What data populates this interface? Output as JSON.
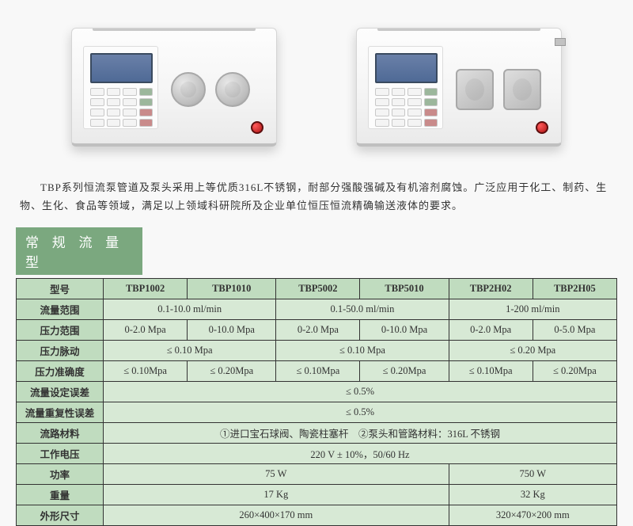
{
  "description": "TBP系列恒流泵管道及泵头采用上等优质316L不锈钢，耐部分强酸强碱及有机溶剂腐蚀。广泛应用于化工、制药、生物、生化、食品等领域，满足以上领域科研院所及企业单位恒压恒流精确输送液体的要求。",
  "section_title": "常 规 流 量 型",
  "images": {
    "left_alt": "TBP pump model A",
    "right_alt": "TBP pump model B"
  },
  "table": {
    "header_label": "型号",
    "models": [
      "TBP1002",
      "TBP1010",
      "TBP5002",
      "TBP5010",
      "TBP2H02",
      "TBP2H05"
    ],
    "rows": [
      {
        "label": "流量范围",
        "spans": [
          {
            "colspan": 2,
            "value": "0.1-10.0 ml/min"
          },
          {
            "colspan": 2,
            "value": "0.1-50.0 ml/min"
          },
          {
            "colspan": 2,
            "value": "1-200 ml/min"
          }
        ]
      },
      {
        "label": "压力范围",
        "spans": [
          {
            "colspan": 1,
            "value": "0-2.0 Mpa"
          },
          {
            "colspan": 1,
            "value": "0-10.0 Mpa"
          },
          {
            "colspan": 1,
            "value": "0-2.0 Mpa"
          },
          {
            "colspan": 1,
            "value": "0-10.0 Mpa"
          },
          {
            "colspan": 1,
            "value": "0-2.0 Mpa"
          },
          {
            "colspan": 1,
            "value": "0-5.0 Mpa"
          }
        ]
      },
      {
        "label": "压力脉动",
        "spans": [
          {
            "colspan": 2,
            "value": "≤ 0.10 Mpa"
          },
          {
            "colspan": 2,
            "value": "≤ 0.10 Mpa"
          },
          {
            "colspan": 2,
            "value": "≤ 0.20 Mpa"
          }
        ]
      },
      {
        "label": "压力准确度",
        "spans": [
          {
            "colspan": 1,
            "value": "≤ 0.10Mpa"
          },
          {
            "colspan": 1,
            "value": "≤ 0.20Mpa"
          },
          {
            "colspan": 1,
            "value": "≤ 0.10Mpa"
          },
          {
            "colspan": 1,
            "value": "≤ 0.20Mpa"
          },
          {
            "colspan": 1,
            "value": "≤ 0.10Mpa"
          },
          {
            "colspan": 1,
            "value": "≤ 0.20Mpa"
          }
        ]
      },
      {
        "label": "流量设定误差",
        "spans": [
          {
            "colspan": 6,
            "value": "≤ 0.5%"
          }
        ]
      },
      {
        "label": "流量重复性误差",
        "spans": [
          {
            "colspan": 6,
            "value": "≤ 0.5%"
          }
        ]
      },
      {
        "label": "流路材料",
        "spans": [
          {
            "colspan": 6,
            "value": "①进口宝石球阀、陶瓷柱塞杆　②泵头和管路材料：316L 不锈钢"
          }
        ]
      },
      {
        "label": "工作电压",
        "spans": [
          {
            "colspan": 6,
            "value": "220 V ± 10%，50/60 Hz"
          }
        ]
      },
      {
        "label": "功率",
        "spans": [
          {
            "colspan": 4,
            "value": "75 W"
          },
          {
            "colspan": 2,
            "value": "750 W"
          }
        ]
      },
      {
        "label": "重量",
        "spans": [
          {
            "colspan": 4,
            "value": "17 Kg"
          },
          {
            "colspan": 2,
            "value": "32 Kg"
          }
        ]
      },
      {
        "label": "外形尺寸",
        "spans": [
          {
            "colspan": 4,
            "value": "260×400×170 mm"
          },
          {
            "colspan": 2,
            "value": "320×470×200 mm"
          }
        ]
      }
    ]
  },
  "colors": {
    "header_bg": "#7ba87f",
    "table_bg": "#d7e9d5",
    "th_bg": "#c0dcbf",
    "border": "#333333"
  }
}
